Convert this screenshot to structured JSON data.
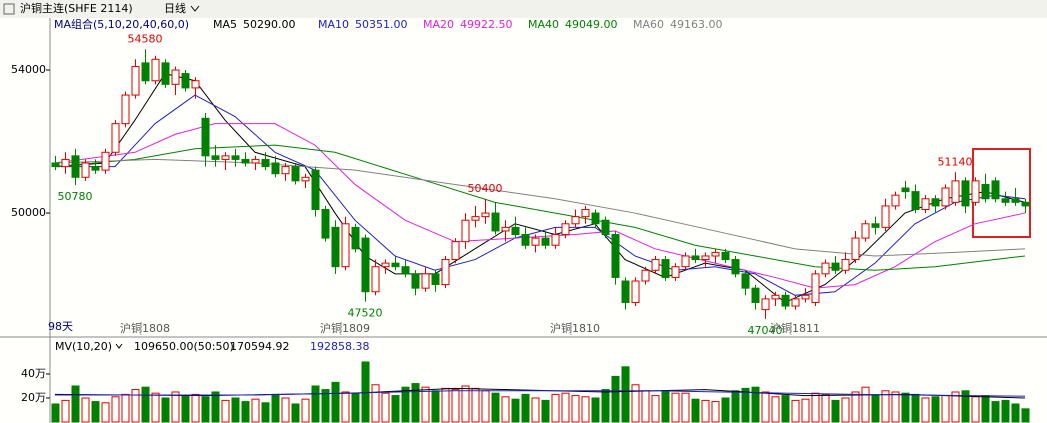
{
  "chart_data": [
    {
      "type": "candlestick",
      "title": "沪铜主连(SHFE 2114)",
      "period": "日线",
      "ma_label": "MA组合(5,10,20,40,60,0)",
      "day_count": "98天",
      "ylim": [
        46590,
        55455
      ],
      "yticks": [
        50000,
        54000
      ],
      "up_color": "#e00000",
      "down_color": "#008000",
      "candles": [
        [
          51400,
          51600,
          51200,
          51300
        ],
        [
          51300,
          51700,
          51100,
          51500
        ],
        [
          51600,
          51800,
          50780,
          51000
        ],
        [
          51000,
          51500,
          50900,
          51400
        ],
        [
          51300,
          51500,
          51100,
          51200
        ],
        [
          51200,
          51800,
          51100,
          51700
        ],
        [
          51700,
          52600,
          51600,
          52500
        ],
        [
          52500,
          53400,
          52400,
          53300
        ],
        [
          53300,
          54300,
          53200,
          54100
        ],
        [
          54200,
          54580,
          53600,
          53700
        ],
        [
          53700,
          54400,
          53600,
          54300
        ],
        [
          54200,
          54300,
          53500,
          53600
        ],
        [
          53600,
          54100,
          53300,
          54000
        ],
        [
          53900,
          54000,
          53400,
          53500
        ],
        [
          53500,
          53800,
          53200,
          53700
        ],
        [
          52650,
          52800,
          51300,
          51600
        ],
        [
          51600,
          51900,
          51300,
          51500
        ],
        [
          51500,
          51700,
          51200,
          51600
        ],
        [
          51600,
          51800,
          51300,
          51500
        ],
        [
          51500,
          51700,
          51300,
          51400
        ],
        [
          51400,
          51600,
          51200,
          51500
        ],
        [
          51500,
          51700,
          51200,
          51300
        ],
        [
          51400,
          51600,
          51000,
          51100
        ],
        [
          51100,
          51400,
          50900,
          51300
        ],
        [
          51300,
          51400,
          50800,
          50900
        ],
        [
          50900,
          51100,
          50700,
          51000
        ],
        [
          51200,
          51300,
          49900,
          50100
        ],
        [
          50100,
          50200,
          49200,
          49300
        ],
        [
          49600,
          49800,
          48300,
          48500
        ],
        [
          48500,
          49900,
          48400,
          49700
        ],
        [
          49600,
          49700,
          48900,
          49000
        ],
        [
          49300,
          49400,
          47520,
          47800
        ],
        [
          47800,
          48700,
          47700,
          48500
        ],
        [
          48500,
          48700,
          48300,
          48600
        ],
        [
          48600,
          48800,
          48400,
          48500
        ],
        [
          48500,
          48700,
          48200,
          48300
        ],
        [
          48300,
          48400,
          47700,
          47900
        ],
        [
          47900,
          48500,
          47800,
          48300
        ],
        [
          48300,
          48400,
          47800,
          48000
        ],
        [
          48000,
          48800,
          47900,
          48700
        ],
        [
          48700,
          49300,
          48600,
          49200
        ],
        [
          49200,
          50000,
          49000,
          49800
        ],
        [
          49800,
          50200,
          49600,
          49900
        ],
        [
          49900,
          50400,
          49700,
          50000
        ],
        [
          50000,
          50300,
          49400,
          49500
        ],
        [
          49500,
          49800,
          49200,
          49600
        ],
        [
          49600,
          49900,
          49300,
          49400
        ],
        [
          49400,
          49600,
          49000,
          49100
        ],
        [
          49100,
          49400,
          48900,
          49300
        ],
        [
          49300,
          49500,
          49000,
          49100
        ],
        [
          49100,
          49600,
          49000,
          49400
        ],
        [
          49400,
          49800,
          49300,
          49700
        ],
        [
          49700,
          50100,
          49600,
          49900
        ],
        [
          49900,
          50200,
          49700,
          50100
        ],
        [
          50000,
          50100,
          49600,
          49700
        ],
        [
          49800,
          49900,
          49300,
          49400
        ],
        [
          49400,
          49500,
          48000,
          48200
        ],
        [
          48100,
          48200,
          47300,
          47500
        ],
        [
          47500,
          48200,
          47400,
          48100
        ],
        [
          48100,
          48500,
          48000,
          48400
        ],
        [
          48400,
          48800,
          48300,
          48700
        ],
        [
          48700,
          48800,
          48100,
          48200
        ],
        [
          48200,
          48600,
          48100,
          48500
        ],
        [
          48500,
          48900,
          48400,
          48800
        ],
        [
          48800,
          49000,
          48600,
          48700
        ],
        [
          48700,
          48900,
          48500,
          48800
        ],
        [
          48800,
          49000,
          48600,
          48900
        ],
        [
          48900,
          49000,
          48600,
          48700
        ],
        [
          48700,
          48800,
          48200,
          48300
        ],
        [
          48300,
          48400,
          47700,
          47900
        ],
        [
          47900,
          48000,
          47300,
          47500
        ],
        [
          47300,
          47700,
          47040,
          47600
        ],
        [
          47600,
          47800,
          47400,
          47700
        ],
        [
          47700,
          47800,
          47300,
          47400
        ],
        [
          47400,
          47700,
          47300,
          47600
        ],
        [
          47600,
          47900,
          47500,
          47700
        ],
        [
          47500,
          48400,
          47400,
          48300
        ],
        [
          48300,
          48700,
          48200,
          48600
        ],
        [
          48600,
          48800,
          48300,
          48400
        ],
        [
          48400,
          48900,
          48300,
          48700
        ],
        [
          48700,
          49500,
          48600,
          49300
        ],
        [
          49300,
          49800,
          49200,
          49700
        ],
        [
          49700,
          49900,
          49400,
          49600
        ],
        [
          49600,
          50400,
          49500,
          50200
        ],
        [
          50200,
          50600,
          50100,
          50500
        ],
        [
          50700,
          50900,
          50400,
          50600
        ],
        [
          50600,
          50800,
          50000,
          50100
        ],
        [
          50100,
          50500,
          50000,
          50400
        ],
        [
          50400,
          50500,
          50000,
          50200
        ],
        [
          50200,
          50800,
          50100,
          50700
        ],
        [
          50300,
          51140,
          50200,
          50900
        ],
        [
          50900,
          51000,
          50000,
          50200
        ],
        [
          50300,
          51000,
          50200,
          50900
        ],
        [
          50800,
          51100,
          50300,
          50400
        ],
        [
          50900,
          51000,
          50300,
          50400
        ],
        [
          50400,
          50600,
          50200,
          50300
        ],
        [
          50400,
          50700,
          50200,
          50300
        ],
        [
          50300,
          50400,
          50000,
          50200
        ]
      ],
      "series": [
        {
          "name": "MA5",
          "current": "50290.00",
          "color": "#000000",
          "x": [
            0,
            5,
            8,
            11,
            14,
            17,
            20,
            25,
            28,
            31,
            34,
            38,
            42,
            46,
            50,
            54,
            57,
            61,
            65,
            69,
            73,
            77,
            81,
            85,
            89,
            93,
            97
          ],
          "values": [
            51300,
            51400,
            52600,
            53900,
            53700,
            52600,
            51700,
            51300,
            50000,
            48800,
            48300,
            48300,
            49000,
            49700,
            49400,
            49700,
            48700,
            48200,
            48600,
            48400,
            47500,
            48000,
            48900,
            50000,
            50400,
            50600,
            50300
          ]
        },
        {
          "name": "MA10",
          "current": "50351.00",
          "color": "#2020c0",
          "x": [
            0,
            6,
            10,
            14,
            18,
            22,
            26,
            30,
            34,
            38,
            42,
            46,
            50,
            54,
            58,
            62,
            66,
            70,
            74,
            78,
            82,
            86,
            90,
            94,
            97
          ],
          "values": [
            51300,
            51300,
            52500,
            53300,
            52700,
            51700,
            51200,
            49800,
            48800,
            48400,
            48700,
            49300,
            49600,
            49600,
            48800,
            48400,
            48500,
            48300,
            47700,
            47800,
            48600,
            49700,
            50300,
            50500,
            50400
          ]
        },
        {
          "name": "MA20",
          "current": "49922.50",
          "color": "#e020e0",
          "x": [
            0,
            8,
            12,
            16,
            22,
            26,
            30,
            35,
            40,
            46,
            52,
            56,
            60,
            66,
            72,
            76,
            80,
            84,
            88,
            92,
            97
          ],
          "values": [
            51400,
            51700,
            52200,
            52500,
            52500,
            51900,
            50800,
            49800,
            49200,
            49300,
            49400,
            49500,
            49000,
            48600,
            48200,
            47900,
            48000,
            48500,
            49200,
            49700,
            50000
          ]
        },
        {
          "name": "MA40",
          "current": "49049.00",
          "color": "#008000",
          "x": [
            0,
            8,
            14,
            22,
            28,
            36,
            44,
            52,
            58,
            64,
            70,
            76,
            82,
            88,
            94,
            97
          ],
          "values": [
            51300,
            51500,
            51800,
            51900,
            51700,
            51000,
            50300,
            49900,
            49600,
            49100,
            48800,
            48500,
            48400,
            48500,
            48700,
            48800
          ]
        },
        {
          "name": "MA60",
          "current": "49163.00",
          "color": "#808080",
          "x": [
            0,
            10,
            20,
            30,
            40,
            50,
            58,
            66,
            74,
            82,
            90,
            97
          ],
          "values": [
            51400,
            51500,
            51400,
            51200,
            50800,
            50400,
            50000,
            49500,
            49000,
            48800,
            48900,
            49000
          ]
        }
      ],
      "annotations": [
        {
          "index": 9,
          "value": 54580,
          "side": "above"
        },
        {
          "index": 2,
          "value": 50780,
          "side": "below"
        },
        {
          "index": 31,
          "value": 47520,
          "side": "below"
        },
        {
          "index": 43,
          "value": 50400,
          "side": "above"
        },
        {
          "index": 71,
          "value": 47040,
          "side": "below"
        },
        {
          "index": 90,
          "value": 51140,
          "side": "above"
        }
      ],
      "x_labels": [
        {
          "index": 9,
          "label": "沪铜1808"
        },
        {
          "index": 29,
          "label": "沪铜1809"
        },
        {
          "index": 52,
          "label": "沪铜1810"
        },
        {
          "index": 74,
          "label": "沪铜1811"
        }
      ]
    },
    {
      "type": "bar",
      "title": "MV(10,20)",
      "current": "109650.00(50:50)",
      "ylim": [
        0,
        558000
      ],
      "yticks": [
        {
          "value": 200000,
          "label": "20万"
        },
        {
          "value": 400000,
          "label": "40万"
        }
      ],
      "values": [
        150000,
        180000,
        300000,
        200000,
        170000,
        160000,
        210000,
        230000,
        270000,
        290000,
        240000,
        200000,
        250000,
        220000,
        230000,
        210000,
        250000,
        180000,
        200000,
        170000,
        190000,
        160000,
        230000,
        200000,
        150000,
        190000,
        300000,
        270000,
        330000,
        250000,
        240000,
        500000,
        310000,
        240000,
        220000,
        290000,
        320000,
        290000,
        260000,
        280000,
        270000,
        300000,
        280000,
        260000,
        240000,
        210000,
        190000,
        230000,
        200000,
        180000,
        230000,
        240000,
        220000,
        210000,
        200000,
        270000,
        380000,
        460000,
        310000,
        260000,
        220000,
        260000,
        240000,
        240000,
        190000,
        180000,
        170000,
        200000,
        260000,
        280000,
        290000,
        250000,
        210000,
        220000,
        180000,
        190000,
        240000,
        230000,
        180000,
        200000,
        250000,
        290000,
        220000,
        260000,
        250000,
        240000,
        230000,
        200000,
        210000,
        220000,
        250000,
        260000,
        210000,
        220000,
        170000,
        180000,
        150000,
        109650
      ],
      "series": [
        {
          "current": "170594.92",
          "color": "#000000",
          "x": [
            0,
            15,
            30,
            40,
            55,
            65,
            75,
            85,
            97
          ],
          "values": [
            230000,
            220000,
            240000,
            280000,
            250000,
            270000,
            220000,
            230000,
            200000
          ]
        },
        {
          "current": "192858.38",
          "color": "#2020c0",
          "x": [
            0,
            20,
            40,
            60,
            80,
            97
          ],
          "values": [
            225000,
            225000,
            260000,
            260000,
            230000,
            215000
          ]
        }
      ]
    }
  ]
}
